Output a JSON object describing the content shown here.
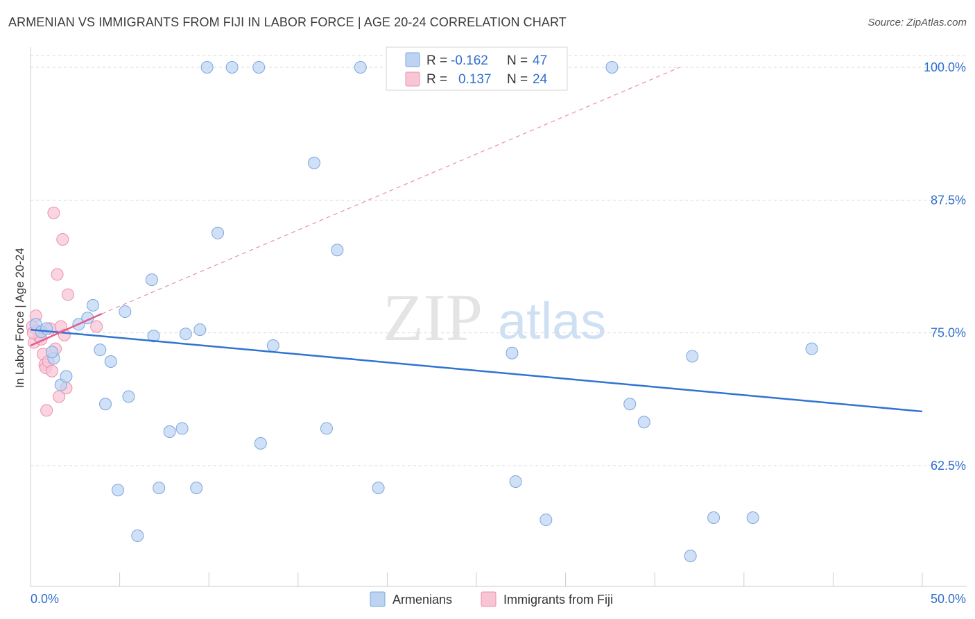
{
  "title": "ARMENIAN VS IMMIGRANTS FROM FIJI IN LABOR FORCE | AGE 20-24 CORRELATION CHART",
  "source": "Source: ZipAtlas.com",
  "watermark": {
    "zip": "ZIP",
    "atlas": "atlas"
  },
  "colors": {
    "armenians_fill": "#bcd3f2",
    "armenians_stroke": "#7aa6e0",
    "armenians_line": "#2f74d0",
    "fiji_fill": "#f8c5d5",
    "fiji_stroke": "#ec8fae",
    "fiji_line": "#e45a8c",
    "value_text": "#2f6fcf",
    "grid": "#d9d9d9"
  },
  "legend_box": {
    "rows": [
      {
        "r_label": "R = ",
        "r_value": "-0.162",
        "n_label": "N = ",
        "n_value": "47"
      },
      {
        "r_label": "R = ",
        "r_value": "0.137",
        "n_label": "N = ",
        "n_value": "24"
      }
    ]
  },
  "bottom_legend": [
    "Armenians",
    "Immigrants from Fiji"
  ],
  "chart_data": {
    "type": "scatter",
    "title": "ARMENIAN VS IMMIGRANTS FROM FIJI IN LABOR FORCE | AGE 20-24 CORRELATION CHART",
    "xlabel": "",
    "ylabel": "In Labor Force | Age 20-24",
    "xlim": [
      0,
      50
    ],
    "ylim": [
      50,
      101
    ],
    "x_tick_labels": [
      "0.0%",
      "50.0%"
    ],
    "y_ticks": [
      62.5,
      75.0,
      87.5,
      100.0
    ],
    "y_tick_labels": [
      "62.5%",
      "75.0%",
      "87.5%",
      "100.0%"
    ],
    "grid": true,
    "series": [
      {
        "name": "Armenians",
        "R": -0.162,
        "N": 47,
        "points": [
          [
            0.3,
            75.8
          ],
          [
            0.6,
            75.1
          ],
          [
            0.9,
            75.4
          ],
          [
            1.3,
            72.6
          ],
          [
            1.2,
            73.2
          ],
          [
            1.7,
            70.1
          ],
          [
            2.0,
            70.9
          ],
          [
            2.7,
            75.8
          ],
          [
            3.2,
            76.4
          ],
          [
            3.5,
            77.6
          ],
          [
            3.9,
            73.4
          ],
          [
            4.2,
            68.3
          ],
          [
            4.5,
            72.3
          ],
          [
            4.9,
            60.2
          ],
          [
            5.3,
            77.0
          ],
          [
            5.5,
            69.0
          ],
          [
            6.0,
            55.9
          ],
          [
            6.9,
            74.7
          ],
          [
            6.8,
            80.0
          ],
          [
            7.2,
            60.4
          ],
          [
            7.8,
            65.7
          ],
          [
            8.5,
            66.0
          ],
          [
            8.7,
            74.9
          ],
          [
            9.3,
            60.4
          ],
          [
            9.5,
            75.3
          ],
          [
            9.9,
            100.0
          ],
          [
            10.5,
            84.4
          ],
          [
            11.3,
            100.0
          ],
          [
            12.8,
            100.0
          ],
          [
            12.9,
            64.6
          ],
          [
            13.6,
            73.8
          ],
          [
            15.9,
            91.0
          ],
          [
            16.6,
            66.0
          ],
          [
            17.2,
            82.8
          ],
          [
            18.5,
            100.0
          ],
          [
            19.5,
            60.4
          ],
          [
            27.0,
            73.1
          ],
          [
            27.2,
            61.0
          ],
          [
            28.9,
            57.4
          ],
          [
            32.6,
            100.0
          ],
          [
            33.6,
            68.3
          ],
          [
            34.4,
            66.6
          ],
          [
            37.0,
            54.0
          ],
          [
            37.1,
            72.8
          ],
          [
            38.3,
            57.6
          ],
          [
            40.5,
            57.6
          ],
          [
            43.8,
            73.5
          ]
        ],
        "trend": {
          "x": [
            0,
            50
          ],
          "y": [
            75.3,
            67.6
          ]
        }
      },
      {
        "name": "Immigrants from Fiji",
        "R": 0.137,
        "N": 24,
        "points": [
          [
            0.1,
            75.6
          ],
          [
            0.2,
            74.1
          ],
          [
            0.3,
            76.6
          ],
          [
            0.4,
            75.2
          ],
          [
            0.5,
            74.6
          ],
          [
            0.6,
            74.4
          ],
          [
            0.7,
            73.0
          ],
          [
            0.8,
            72.0
          ],
          [
            0.85,
            71.7
          ],
          [
            0.9,
            67.7
          ],
          [
            1.0,
            72.3
          ],
          [
            1.1,
            75.4
          ],
          [
            1.2,
            71.4
          ],
          [
            1.3,
            86.3
          ],
          [
            1.4,
            73.5
          ],
          [
            1.5,
            80.5
          ],
          [
            1.6,
            69.0
          ],
          [
            1.7,
            75.6
          ],
          [
            1.8,
            83.8
          ],
          [
            1.9,
            74.8
          ],
          [
            2.0,
            69.8
          ],
          [
            2.1,
            78.6
          ],
          [
            3.7,
            75.6
          ],
          [
            0.15,
            75.0
          ]
        ],
        "trend_solid": {
          "x": [
            0,
            4.0
          ],
          "y": [
            73.8,
            76.8
          ]
        },
        "trend_dashed": {
          "x": [
            4.0,
            36.4
          ],
          "y": [
            76.8,
            100.0
          ]
        }
      }
    ]
  }
}
